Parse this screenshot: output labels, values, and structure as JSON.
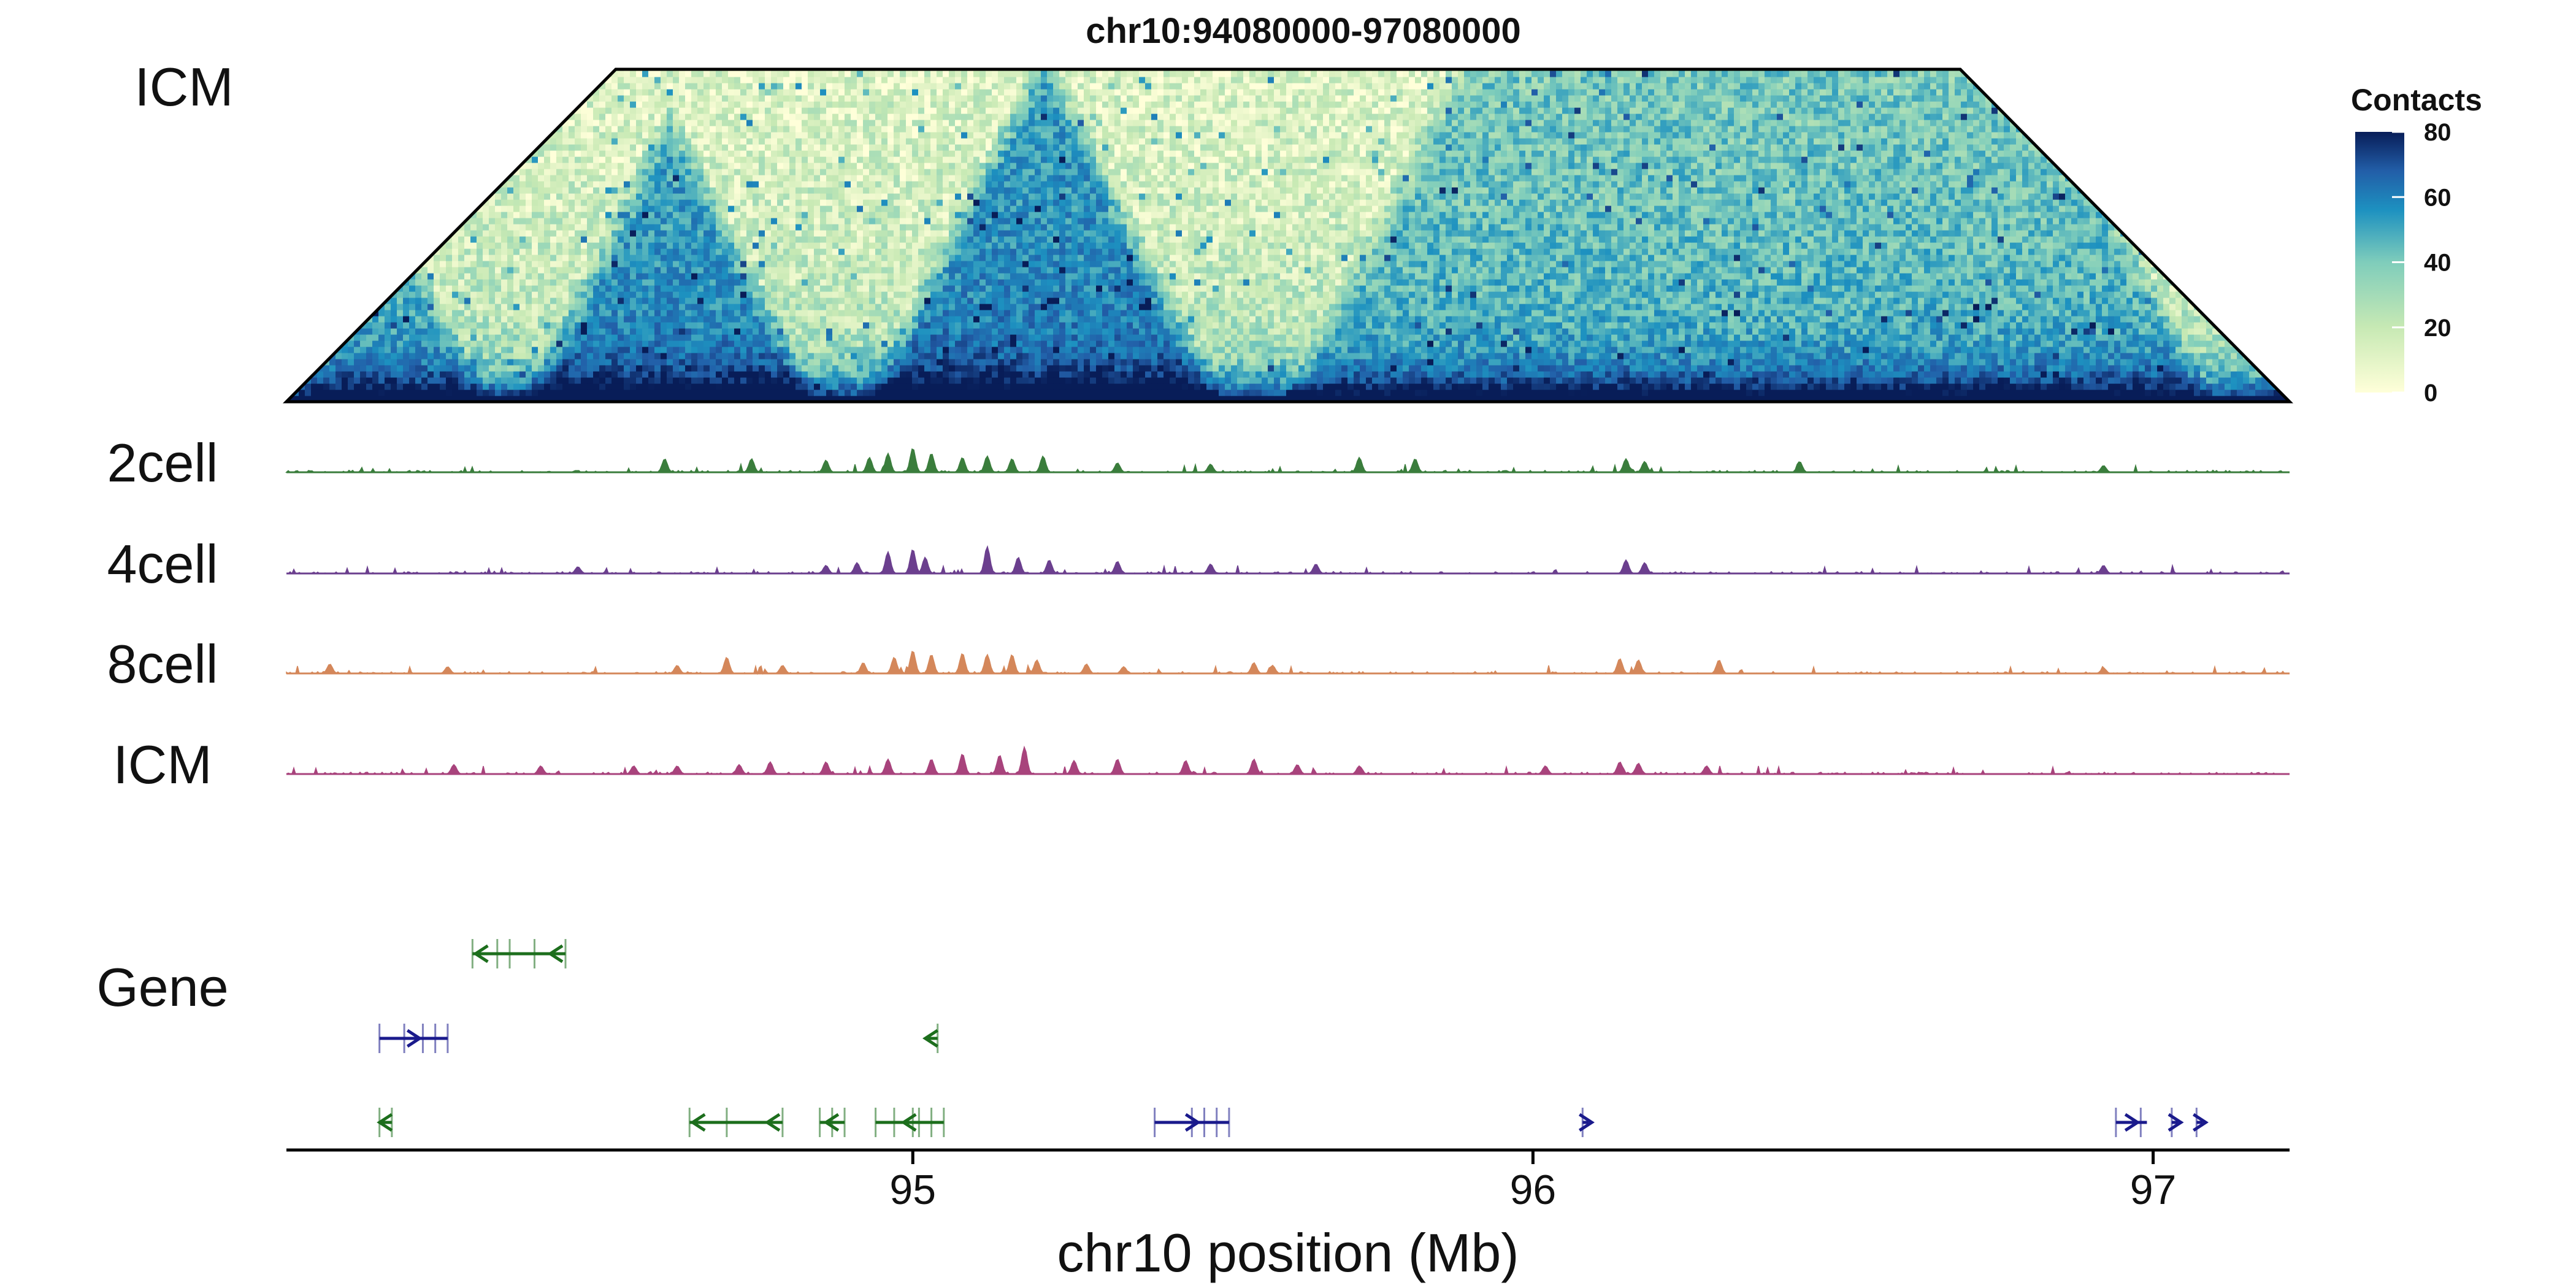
{
  "chart_data": {
    "type": "heatmap",
    "title": "chr10:94080000-97080000",
    "region": {
      "chrom": "chr10",
      "start_mb": 94.08,
      "end_mb": 97.08,
      "plot_start_mb": 93.99,
      "plot_end_mb": 97.22
    },
    "heatmap": {
      "label": "ICM",
      "colorbar_title": "Contacts",
      "colorbar_ticks": [
        "0",
        "20",
        "40",
        "60",
        "80"
      ],
      "range": [
        0,
        80
      ],
      "colors": [
        "#ffffd9",
        "#c7e9b4",
        "#7fcdbb",
        "#1d91c0",
        "#225ea8",
        "#081d58"
      ],
      "domains": [
        {
          "start_mb": 94.0,
          "end_mb": 94.32,
          "strength": 0.55
        },
        {
          "start_mb": 94.37,
          "end_mb": 94.85,
          "strength": 0.75
        },
        {
          "start_mb": 94.92,
          "end_mb": 95.5,
          "strength": 0.8
        },
        {
          "start_mb": 95.6,
          "end_mb": 97.1,
          "strength": 0.5
        }
      ]
    },
    "tracks": [
      {
        "label": "2cell",
        "color": "#3a7d3c",
        "peaks": [
          [
            94.6,
            0.5
          ],
          [
            94.74,
            0.5
          ],
          [
            94.86,
            0.45
          ],
          [
            94.93,
            0.55
          ],
          [
            94.96,
            0.7
          ],
          [
            95.0,
            0.9
          ],
          [
            95.03,
            0.7
          ],
          [
            95.08,
            0.55
          ],
          [
            95.12,
            0.6
          ],
          [
            95.16,
            0.5
          ],
          [
            95.21,
            0.6
          ],
          [
            95.33,
            0.35
          ],
          [
            95.48,
            0.3
          ],
          [
            95.72,
            0.55
          ],
          [
            95.81,
            0.5
          ],
          [
            96.15,
            0.5
          ],
          [
            96.18,
            0.4
          ],
          [
            96.43,
            0.4
          ],
          [
            96.92,
            0.25
          ]
        ]
      },
      {
        "label": "4cell",
        "color": "#6b3f8e",
        "peaks": [
          [
            94.46,
            0.25
          ],
          [
            94.86,
            0.3
          ],
          [
            94.91,
            0.4
          ],
          [
            94.96,
            0.8
          ],
          [
            95.0,
            0.9
          ],
          [
            95.02,
            0.6
          ],
          [
            95.12,
            1.0
          ],
          [
            95.17,
            0.6
          ],
          [
            95.22,
            0.5
          ],
          [
            95.33,
            0.45
          ],
          [
            95.48,
            0.35
          ],
          [
            95.65,
            0.35
          ],
          [
            96.15,
            0.5
          ],
          [
            96.18,
            0.4
          ],
          [
            96.92,
            0.3
          ]
        ]
      },
      {
        "label": "8cell",
        "color": "#d4875a",
        "peaks": [
          [
            94.06,
            0.35
          ],
          [
            94.25,
            0.25
          ],
          [
            94.62,
            0.3
          ],
          [
            94.7,
            0.6
          ],
          [
            94.79,
            0.3
          ],
          [
            94.92,
            0.4
          ],
          [
            94.97,
            0.6
          ],
          [
            95.0,
            0.85
          ],
          [
            95.03,
            0.7
          ],
          [
            95.08,
            0.75
          ],
          [
            95.12,
            0.7
          ],
          [
            95.16,
            0.7
          ],
          [
            95.2,
            0.5
          ],
          [
            95.28,
            0.35
          ],
          [
            95.34,
            0.25
          ],
          [
            95.55,
            0.4
          ],
          [
            95.58,
            0.3
          ],
          [
            96.14,
            0.55
          ],
          [
            96.17,
            0.5
          ],
          [
            96.3,
            0.5
          ],
          [
            96.92,
            0.2
          ]
        ]
      },
      {
        "label": "ICM",
        "color": "#a8437c",
        "peaks": [
          [
            94.26,
            0.35
          ],
          [
            94.4,
            0.3
          ],
          [
            94.55,
            0.3
          ],
          [
            94.62,
            0.3
          ],
          [
            94.72,
            0.35
          ],
          [
            94.77,
            0.45
          ],
          [
            94.86,
            0.45
          ],
          [
            94.96,
            0.55
          ],
          [
            95.03,
            0.55
          ],
          [
            95.08,
            0.75
          ],
          [
            95.14,
            0.7
          ],
          [
            95.18,
            1.0
          ],
          [
            95.26,
            0.5
          ],
          [
            95.33,
            0.55
          ],
          [
            95.44,
            0.5
          ],
          [
            95.55,
            0.55
          ],
          [
            95.62,
            0.35
          ],
          [
            95.72,
            0.3
          ],
          [
            96.02,
            0.3
          ],
          [
            96.14,
            0.45
          ],
          [
            96.17,
            0.4
          ],
          [
            96.28,
            0.3
          ]
        ]
      }
    ],
    "genes": {
      "label": "Gene",
      "minus_color": "#1c6e1c",
      "plus_color": "#1a1a8c",
      "rows": [
        [
          {
            "start_mb": 94.29,
            "end_mb": 94.44,
            "strand": "-",
            "exons": [
              94.29,
              94.33,
              94.35,
              94.39,
              94.44
            ]
          }
        ],
        [
          {
            "start_mb": 94.14,
            "end_mb": 94.25,
            "strand": "+",
            "exons": [
              94.14,
              94.18,
              94.21,
              94.23,
              94.25
            ]
          },
          {
            "start_mb": 95.02,
            "end_mb": 95.04,
            "strand": "-",
            "exons": [
              95.04
            ]
          }
        ],
        [
          {
            "start_mb": 94.14,
            "end_mb": 94.16,
            "strand": "-",
            "exons": [
              94.14,
              94.16
            ]
          },
          {
            "start_mb": 94.64,
            "end_mb": 94.79,
            "strand": "-",
            "exons": [
              94.64,
              94.7,
              94.79
            ]
          },
          {
            "start_mb": 94.85,
            "end_mb": 94.89,
            "strand": "-",
            "exons": [
              94.85,
              94.87,
              94.89
            ]
          },
          {
            "start_mb": 94.94,
            "end_mb": 95.05,
            "strand": "-",
            "exons": [
              94.94,
              94.97,
              95.0,
              95.01,
              95.03,
              95.05
            ]
          },
          {
            "start_mb": 95.39,
            "end_mb": 95.51,
            "strand": "+",
            "exons": [
              95.39,
              95.45,
              95.47,
              95.49,
              95.51
            ]
          },
          {
            "start_mb": 96.08,
            "end_mb": 96.09,
            "strand": "+",
            "exons": [
              96.08
            ]
          },
          {
            "start_mb": 96.94,
            "end_mb": 96.99,
            "strand": "+",
            "exons": [
              96.94,
              96.98
            ]
          },
          {
            "start_mb": 97.03,
            "end_mb": 97.04,
            "strand": "+",
            "exons": [
              97.03
            ]
          },
          {
            "start_mb": 97.07,
            "end_mb": 97.08,
            "strand": "+",
            "exons": [
              97.07
            ]
          }
        ]
      ]
    },
    "xaxis": {
      "label": "chr10 position (Mb)",
      "ticks": [
        95,
        96,
        97
      ],
      "tick_labels": [
        "95",
        "96",
        "97"
      ]
    }
  }
}
